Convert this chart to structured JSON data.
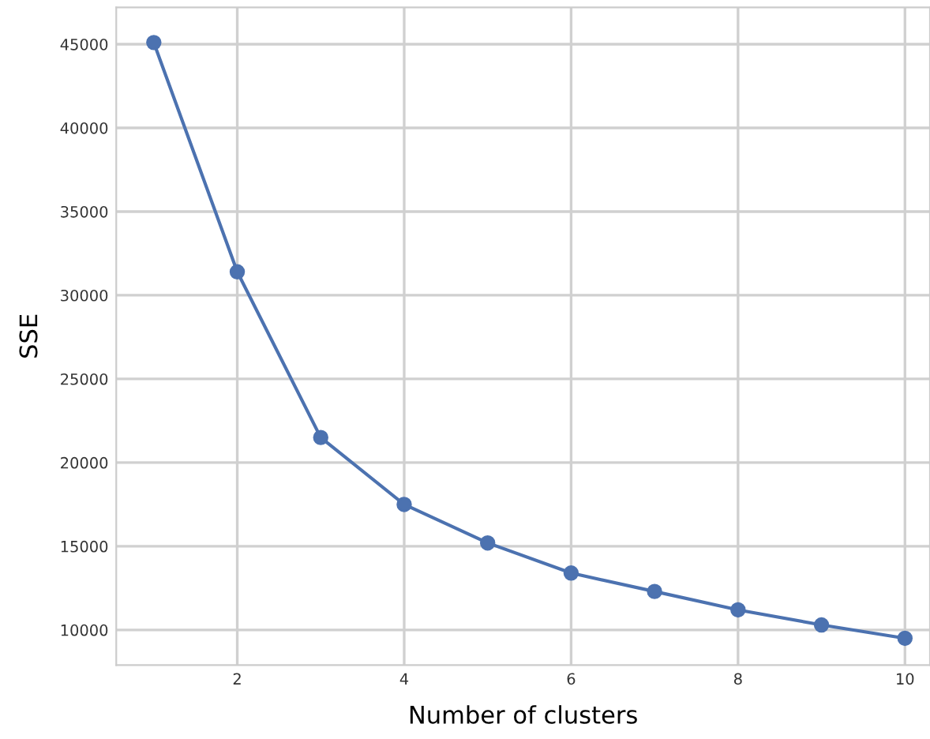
{
  "chart_data": {
    "type": "line",
    "xlabel": "Number of clusters",
    "ylabel": "SSE",
    "x": [
      1,
      2,
      3,
      4,
      5,
      6,
      7,
      8,
      9,
      10
    ],
    "series": [
      {
        "color": "#4c72b0",
        "values": [
          45100,
          31400,
          21500,
          17500,
          15200,
          13400,
          12300,
          11200,
          10300,
          9500
        ]
      }
    ],
    "xlim": [
      0.55,
      10.3
    ],
    "ylim": [
      7900,
      47200
    ],
    "xticks": [
      2,
      4,
      6,
      8,
      10
    ],
    "yticks": [
      10000,
      15000,
      20000,
      25000,
      30000,
      35000,
      40000,
      45000
    ],
    "grid": true,
    "marker": "circle",
    "line_style": "solid"
  }
}
